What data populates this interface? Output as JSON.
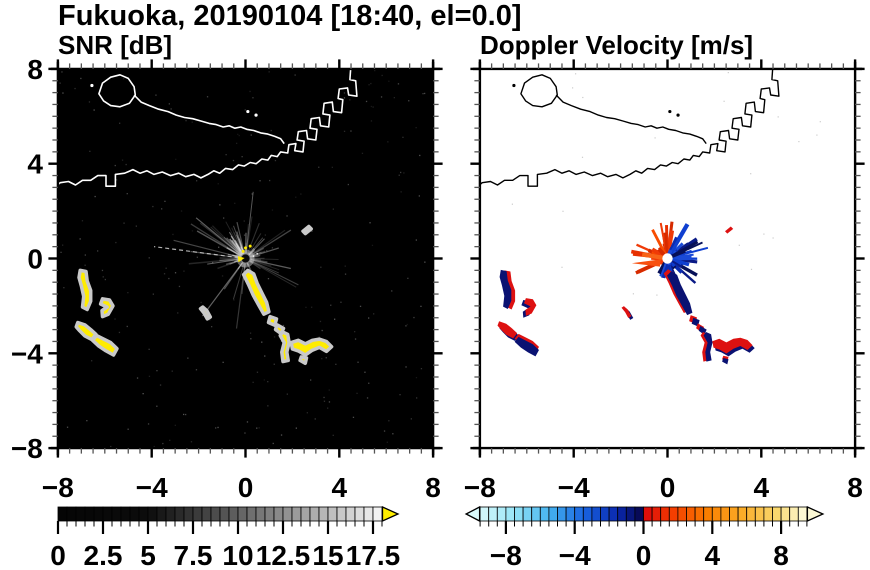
{
  "title": "Fukuoka, 20190104 [18:40, el=0.0]",
  "panels": {
    "snr": {
      "label": "SNR [dB]",
      "bg": "#000000",
      "coast_color": "#ffffff"
    },
    "vel": {
      "label": "Doppler Velocity [m/s]",
      "bg": "#ffffff",
      "coast_color": "#000000"
    }
  },
  "axes": {
    "range": [
      -8,
      8
    ],
    "tick_values": [
      -8,
      -4,
      0,
      4,
      8
    ],
    "tick_labels": [
      "−8",
      "−4",
      "0",
      "4",
      "8"
    ],
    "minor_step": 0.5
  },
  "colors": {
    "snr_echo": "#ffec00",
    "snr_halo": "#c9c9c9",
    "vel_red": "#dd1111",
    "vel_navy": "#0a1272",
    "warm_palette": [
      "#e73000",
      "#f84c00",
      "#f86418",
      "#ef3a07",
      "#d62b00"
    ],
    "cool_palette": [
      "#0a1a86",
      "#0c2cb0",
      "#0f3fd0",
      "#071058",
      "#1a4ad8"
    ],
    "streak": "#ffffff"
  },
  "colorbars": {
    "snr": {
      "range": [
        0,
        18
      ],
      "cell_step": 0.5,
      "tick_values": [
        0,
        2.5,
        5,
        7.5,
        10,
        12.5,
        15,
        17.5
      ],
      "tick_labels": [
        "0",
        "2.5",
        "5",
        "7.5",
        "10",
        "12.5",
        "15",
        "17.5"
      ],
      "stops": [
        [
          0,
          [
            5,
            5,
            5
          ]
        ],
        [
          5,
          [
            12,
            12,
            12
          ]
        ],
        [
          9,
          [
            80,
            80,
            80
          ]
        ],
        [
          13,
          [
            150,
            150,
            150
          ]
        ],
        [
          16,
          [
            205,
            205,
            205
          ]
        ],
        [
          18,
          [
            247,
            247,
            247
          ]
        ]
      ],
      "over_color": "#ffee00",
      "has_under_arrow": false,
      "has_over_arrow": true
    },
    "vel": {
      "range": [
        -9.5,
        9.5
      ],
      "cell_step": 0.5,
      "tick_values": [
        -8,
        -4,
        0,
        4,
        8
      ],
      "tick_labels": [
        "−8",
        "−4",
        "0",
        "4",
        "8"
      ],
      "stops_neg": [
        [
          -9.5,
          [
            216,
            248,
            250
          ]
        ],
        [
          -7.5,
          [
            150,
            228,
            246
          ]
        ],
        [
          -5.5,
          [
            70,
            180,
            240
          ]
        ],
        [
          -3.5,
          [
            25,
            100,
            225
          ]
        ],
        [
          -1.5,
          [
            10,
            40,
            175
          ]
        ],
        [
          -0.25,
          [
            7,
            10,
            88
          ]
        ]
      ],
      "stops_pos": [
        [
          0.25,
          [
            222,
            14,
            10
          ]
        ],
        [
          1.75,
          [
            244,
            62,
            0
          ]
        ],
        [
          3.75,
          [
            249,
            126,
            0
          ]
        ],
        [
          5.75,
          [
            250,
            172,
            40
          ]
        ],
        [
          7.75,
          [
            250,
            216,
            110
          ]
        ],
        [
          9.25,
          [
            252,
            248,
            210
          ]
        ]
      ],
      "under_color": "#d8f8fa",
      "over_color": "#fbf8d4",
      "has_under_arrow": true,
      "has_over_arrow": true
    }
  },
  "map": {
    "coast_main": [
      [
        -8.2,
        2.95
      ],
      [
        -7.9,
        3.2
      ],
      [
        -7.55,
        3.25
      ],
      [
        -7.25,
        3.1
      ],
      [
        -6.95,
        3.3
      ],
      [
        -6.6,
        3.3
      ],
      [
        -6.3,
        3.5
      ],
      [
        -5.95,
        3.5
      ],
      [
        -5.95,
        3.05
      ],
      [
        -5.55,
        3.05
      ],
      [
        -5.55,
        3.55
      ],
      [
        -5.15,
        3.6
      ],
      [
        -4.8,
        3.75
      ],
      [
        -4.5,
        3.6
      ],
      [
        -4.2,
        3.7
      ],
      [
        -3.9,
        3.55
      ],
      [
        -3.55,
        3.65
      ],
      [
        -3.2,
        3.5
      ],
      [
        -2.85,
        3.6
      ],
      [
        -2.55,
        3.45
      ],
      [
        -2.2,
        3.55
      ],
      [
        -1.9,
        3.4
      ],
      [
        -1.6,
        3.55
      ],
      [
        -1.35,
        3.7
      ],
      [
        -1.1,
        3.6
      ],
      [
        -0.85,
        3.8
      ],
      [
        -0.55,
        3.75
      ],
      [
        -0.3,
        3.95
      ],
      [
        -0.05,
        3.9
      ],
      [
        0.2,
        4.05
      ],
      [
        0.45,
        4.0
      ],
      [
        0.7,
        4.2
      ],
      [
        0.95,
        4.15
      ],
      [
        1.1,
        4.35
      ],
      [
        1.35,
        4.3
      ],
      [
        1.5,
        4.5
      ],
      [
        1.8,
        4.45
      ],
      [
        1.85,
        4.8
      ],
      [
        2.15,
        4.85
      ],
      [
        2.1,
        4.55
      ],
      [
        2.45,
        4.5
      ],
      [
        2.5,
        4.95
      ],
      [
        2.2,
        5.0
      ],
      [
        2.25,
        5.35
      ],
      [
        2.6,
        5.4
      ],
      [
        2.65,
        5.05
      ],
      [
        3.0,
        5.0
      ],
      [
        3.05,
        5.45
      ],
      [
        2.75,
        5.5
      ],
      [
        2.8,
        5.9
      ],
      [
        3.15,
        5.95
      ],
      [
        3.2,
        5.6
      ],
      [
        3.55,
        5.55
      ],
      [
        3.6,
        6.05
      ],
      [
        3.3,
        6.1
      ],
      [
        3.35,
        6.55
      ],
      [
        3.7,
        6.6
      ],
      [
        3.75,
        6.2
      ],
      [
        4.1,
        6.15
      ],
      [
        4.15,
        6.7
      ],
      [
        3.95,
        6.75
      ],
      [
        4.0,
        7.15
      ],
      [
        4.35,
        7.2
      ],
      [
        4.4,
        6.9
      ],
      [
        4.75,
        6.85
      ],
      [
        4.7,
        7.5
      ],
      [
        4.45,
        7.55
      ],
      [
        4.5,
        8.2
      ]
    ],
    "spit": [
      [
        -4.75,
        6.9
      ],
      [
        -4.45,
        6.6
      ],
      [
        -4.1,
        6.45
      ],
      [
        -3.7,
        6.3
      ],
      [
        -3.3,
        6.2
      ],
      [
        -2.95,
        6.05
      ],
      [
        -2.6,
        5.95
      ],
      [
        -2.25,
        5.9
      ],
      [
        -1.9,
        5.8
      ],
      [
        -1.55,
        5.7
      ],
      [
        -1.25,
        5.65
      ],
      [
        -0.95,
        5.55
      ],
      [
        -0.7,
        5.6
      ],
      [
        -0.45,
        5.5
      ],
      [
        -0.2,
        5.55
      ],
      [
        0.05,
        5.45
      ],
      [
        0.35,
        5.4
      ],
      [
        0.65,
        5.3
      ],
      [
        0.95,
        5.25
      ],
      [
        1.25,
        5.15
      ],
      [
        1.5,
        5.05
      ],
      [
        1.65,
        4.85
      ]
    ],
    "island": [
      [
        -6.25,
        6.95
      ],
      [
        -6.1,
        7.4
      ],
      [
        -5.75,
        7.65
      ],
      [
        -5.35,
        7.75
      ],
      [
        -5.0,
        7.6
      ],
      [
        -4.75,
        7.25
      ],
      [
        -4.7,
        6.9
      ],
      [
        -4.95,
        6.55
      ],
      [
        -5.35,
        6.4
      ],
      [
        -5.75,
        6.45
      ],
      [
        -6.05,
        6.65
      ]
    ],
    "islets": [
      [
        -6.55,
        7.3
      ],
      [
        0.1,
        6.2
      ],
      [
        0.45,
        6.05
      ]
    ]
  },
  "echoes": [
    {
      "name": "west-banana",
      "pts": [
        [
          -7.05,
          -0.5
        ],
        [
          -6.8,
          -0.55
        ],
        [
          -6.75,
          -0.95
        ],
        [
          -6.6,
          -1.35
        ],
        [
          -6.6,
          -1.8
        ],
        [
          -6.75,
          -2.15
        ],
        [
          -6.95,
          -2.05
        ],
        [
          -6.9,
          -1.6
        ],
        [
          -7.0,
          -1.15
        ],
        [
          -7.1,
          -0.8
        ]
      ],
      "vel_layers": [
        [
          "red",
          [
            0.1,
            0
          ]
        ],
        [
          "navy",
          [
            -0.06,
            0.02
          ]
        ]
      ]
    },
    {
      "name": "west-hook",
      "pts": [
        [
          -6.1,
          -1.7
        ],
        [
          -5.8,
          -1.75
        ],
        [
          -5.65,
          -2.0
        ],
        [
          -5.85,
          -2.35
        ],
        [
          -6.1,
          -2.45
        ],
        [
          -6.12,
          -2.2
        ],
        [
          -5.9,
          -2.05
        ],
        [
          -6.18,
          -1.92
        ]
      ],
      "vel_layers": [
        [
          "navy",
          [
            -0.05,
            -0.05
          ]
        ],
        [
          "red",
          [
            0.06,
            0.03
          ]
        ]
      ]
    },
    {
      "name": "west-bar-1",
      "pts": [
        [
          -7.15,
          -2.7
        ],
        [
          -6.85,
          -2.8
        ],
        [
          -6.6,
          -3.0
        ],
        [
          -6.38,
          -3.2
        ],
        [
          -6.55,
          -3.42
        ],
        [
          -6.85,
          -3.27
        ],
        [
          -7.07,
          -3.05
        ],
        [
          -7.22,
          -2.88
        ]
      ],
      "vel_layers": [
        [
          "navy",
          [
            0.05,
            -0.06
          ]
        ],
        [
          "red",
          [
            -0.03,
            0.05
          ]
        ]
      ]
    },
    {
      "name": "west-bar-2",
      "pts": [
        [
          -6.35,
          -3.25
        ],
        [
          -6.05,
          -3.4
        ],
        [
          -5.75,
          -3.55
        ],
        [
          -5.48,
          -3.8
        ],
        [
          -5.63,
          -4.07
        ],
        [
          -5.95,
          -3.9
        ],
        [
          -6.25,
          -3.7
        ],
        [
          -6.52,
          -3.45
        ]
      ],
      "vel_layers": [
        [
          "red",
          [
            0.0,
            0.07
          ]
        ],
        [
          "navy",
          [
            0.0,
            -0.06
          ]
        ]
      ]
    },
    {
      "name": "trail-upper",
      "pts": [
        [
          0.1,
          -0.5
        ],
        [
          0.35,
          -0.65
        ],
        [
          0.5,
          -1.05
        ],
        [
          0.7,
          -1.45
        ],
        [
          0.9,
          -1.85
        ],
        [
          1.0,
          -2.25
        ],
        [
          0.78,
          -2.35
        ],
        [
          0.58,
          -2.0
        ],
        [
          0.33,
          -1.55
        ],
        [
          0.13,
          -1.1
        ],
        [
          -0.08,
          -0.68
        ]
      ],
      "vel_layers": [
        [
          "red",
          [
            -0.08,
            0.05
          ]
        ],
        [
          "navy",
          [
            0.06,
            -0.04
          ]
        ]
      ]
    },
    {
      "name": "trail-seg-1",
      "pts": [
        [
          1.05,
          -2.45
        ],
        [
          1.32,
          -2.55
        ],
        [
          1.25,
          -2.82
        ],
        [
          0.98,
          -2.7
        ]
      ],
      "vel_layers": [
        [
          "red",
          [
            -0.06,
            0.06
          ]
        ],
        [
          "navy",
          [
            0.05,
            -0.05
          ]
        ]
      ]
    },
    {
      "name": "trail-seg-2",
      "pts": [
        [
          1.35,
          -2.8
        ],
        [
          1.62,
          -2.95
        ],
        [
          1.52,
          -3.17
        ],
        [
          1.28,
          -3.0
        ]
      ],
      "vel_layers": [
        [
          "red",
          [
            -0.06,
            0.06
          ]
        ],
        [
          "navy",
          [
            0.05,
            -0.05
          ]
        ]
      ]
    },
    {
      "name": "trail-hook",
      "pts": [
        [
          1.58,
          -3.1
        ],
        [
          1.8,
          -3.2
        ],
        [
          1.86,
          -3.55
        ],
        [
          1.76,
          -3.95
        ],
        [
          1.82,
          -4.3
        ],
        [
          1.6,
          -4.35
        ],
        [
          1.55,
          -3.95
        ],
        [
          1.65,
          -3.55
        ],
        [
          1.48,
          -3.25
        ]
      ],
      "vel_layers": [
        [
          "red",
          [
            -0.07,
            0
          ]
        ],
        [
          "navy",
          [
            0.06,
            0
          ]
        ]
      ]
    },
    {
      "name": "trail-cluster",
      "pts": [
        [
          1.95,
          -3.55
        ],
        [
          2.25,
          -3.45
        ],
        [
          2.55,
          -3.6
        ],
        [
          2.85,
          -3.45
        ],
        [
          3.15,
          -3.4
        ],
        [
          3.45,
          -3.5
        ],
        [
          3.67,
          -3.72
        ],
        [
          3.45,
          -3.92
        ],
        [
          3.15,
          -3.75
        ],
        [
          2.85,
          -3.87
        ],
        [
          2.55,
          -4.07
        ],
        [
          2.25,
          -3.9
        ],
        [
          2.0,
          -3.82
        ]
      ],
      "vel_layers": [
        [
          "navy",
          [
            0.05,
            -0.06
          ]
        ],
        [
          "red",
          [
            -0.04,
            0.06
          ]
        ]
      ]
    },
    {
      "name": "trail-bit",
      "pts": [
        [
          2.38,
          -4.15
        ],
        [
          2.6,
          -4.2
        ],
        [
          2.55,
          -4.42
        ],
        [
          2.33,
          -4.3
        ]
      ],
      "vel_layers": [
        [
          "red",
          [
            0,
            0.05
          ]
        ],
        [
          "navy",
          [
            0,
            -0.05
          ]
        ]
      ]
    },
    {
      "name": "dash-ne",
      "pts": [
        [
          2.45,
          1.15
        ],
        [
          2.7,
          1.35
        ],
        [
          2.8,
          1.25
        ],
        [
          2.55,
          1.05
        ]
      ],
      "vel_layers": [
        [
          "red",
          [
            0,
            0
          ]
        ]
      ]
    },
    {
      "name": "dash-sw",
      "pts": [
        [
          -1.82,
          -2.05
        ],
        [
          -1.65,
          -2.2
        ],
        [
          -1.5,
          -2.47
        ],
        [
          -1.63,
          -2.55
        ],
        [
          -1.77,
          -2.3
        ],
        [
          -1.92,
          -2.12
        ]
      ],
      "vel_layers": [
        [
          "navy",
          [
            0.04,
            -0.04
          ]
        ],
        [
          "red",
          [
            -0.04,
            0.04
          ]
        ]
      ]
    }
  ],
  "chart_data": [
    {
      "type": "heatmap",
      "title": "SNR [dB]",
      "suptitle": "Fukuoka, 20190104 [18:40, el=0.0]",
      "xlabel": "",
      "ylabel": "",
      "x_range": [
        -8,
        8
      ],
      "y_range": [
        -8,
        8
      ],
      "x_ticks": [
        -8,
        -4,
        0,
        4,
        8
      ],
      "y_ticks": [
        8,
        4,
        0,
        -4,
        -8
      ],
      "minor_tick_step": 0.5,
      "grid": false,
      "legend": false,
      "colorbar": {
        "range": [
          0,
          18
        ],
        "ticks": [
          0,
          2.5,
          5,
          7.5,
          10,
          12.5,
          15,
          17.5
        ],
        "scale": "black to white grayscale, yellow over-range arrow"
      },
      "features": [
        "black background = no echo",
        "white coastline of Hakata Bay across upper half with round island near (-5.5,7), sand spit toward (1.5,5), port quays zigzag (2..4.5, 4.5..8)",
        "gray radial ground-clutter streaks from radar site at (0,0), dark wedge toward SW",
        "saturated yellow echo trail from (0.2,-0.5) arcing to cluster (2..3.6,-3.4..-4.1)",
        "yellow echo group at x -7.2..-5.5, y -0.5..-4.1",
        "small yellow dashes near (2.6,1.2) and (-1.7,-2.3)"
      ]
    },
    {
      "type": "heatmap",
      "title": "Doppler Velocity [m/s]",
      "suptitle": "Fukuoka, 20190104 [18:40, el=0.0]",
      "xlabel": "",
      "ylabel": "",
      "x_range": [
        -8,
        8
      ],
      "y_range": [
        -8,
        8
      ],
      "x_ticks": [
        -8,
        -4,
        0,
        4,
        8
      ],
      "y_ticks": [
        8,
        4,
        0,
        -4,
        -8
      ],
      "minor_tick_step": 0.5,
      "grid": false,
      "legend": false,
      "colorbar": {
        "range": [
          -9.5,
          9.5
        ],
        "ticks": [
          -8,
          -4,
          0,
          4,
          8
        ],
        "scale": "pale cyan → blue → dark navy at 0⁻, red at 0⁺ → orange → cream; arrows both ends"
      },
      "features": [
        "white background = no echo",
        "same black coastline as SNR panel",
        "clutter splash at radar (0,0): orange/red (toward) on upper-left, dark navy (away) on right, white hole at center",
        "echo trail and west echo group same shapes as SNR panel, rendered as adjacent red and navy patches"
      ]
    }
  ]
}
